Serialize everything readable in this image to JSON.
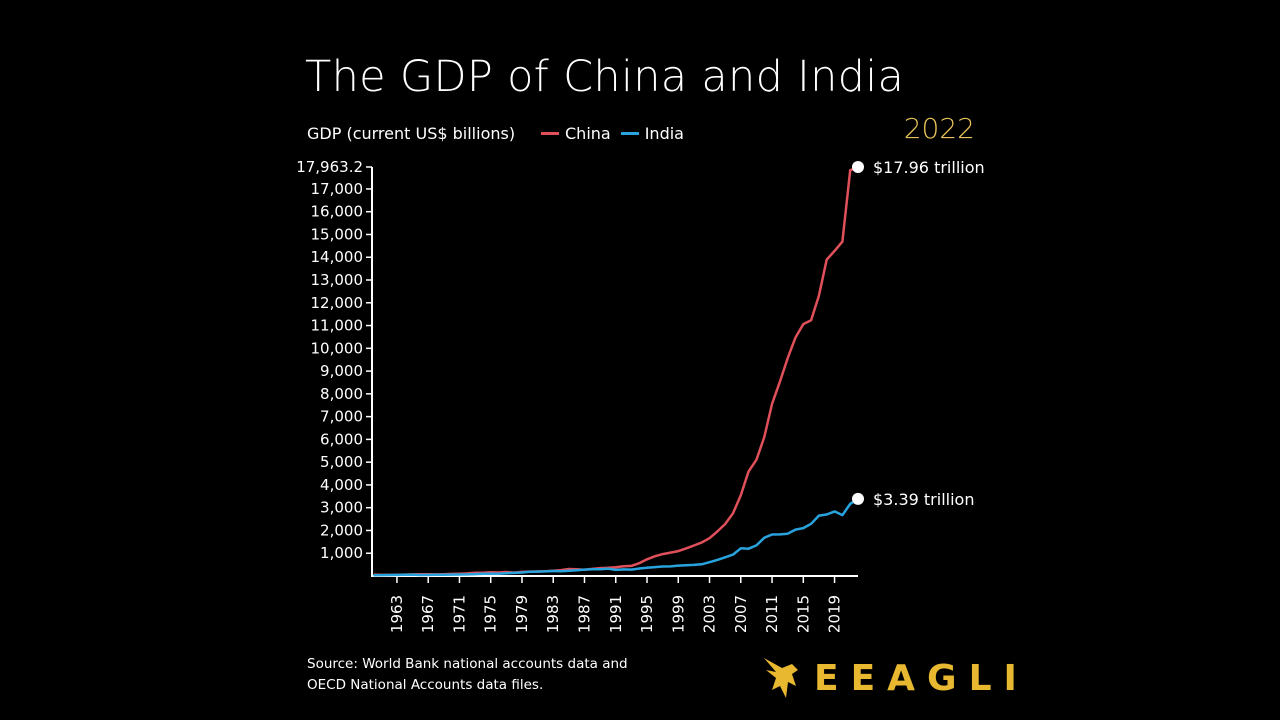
{
  "title": "The GDP of China and India",
  "subtitle": "GDP (current US$ billions)",
  "year_label": "2022",
  "source": [
    "Source: World Bank national accounts data and",
    "OECD National Accounts data files."
  ],
  "logo": "EEAGLI",
  "colors": {
    "china": "#e0505a",
    "india": "#29a3dd",
    "year": "#e8c25a",
    "logo": "#e8b830"
  },
  "chart_data": {
    "type": "line",
    "ylabel": "GDP (current US$ billions)",
    "ylim": [
      0,
      17963.2
    ],
    "xlim": [
      1960,
      2022
    ],
    "y_ticks": [
      "1,000",
      "2,000",
      "3,000",
      "4,000",
      "5,000",
      "6,000",
      "7,000",
      "8,000",
      "9,000",
      "10,000",
      "11,000",
      "12,000",
      "13,000",
      "14,000",
      "15,000",
      "16,000",
      "17,000",
      "17,963.2"
    ],
    "y_tick_values": [
      1000,
      2000,
      3000,
      4000,
      5000,
      6000,
      7000,
      8000,
      9000,
      10000,
      11000,
      12000,
      13000,
      14000,
      15000,
      16000,
      17000,
      17963.2
    ],
    "x_ticks": [
      "1963",
      "1967",
      "1971",
      "1975",
      "1979",
      "1983",
      "1987",
      "1991",
      "1995",
      "1999",
      "2003",
      "2007",
      "2011",
      "2015",
      "2019"
    ],
    "legend": [
      "China",
      "India"
    ],
    "legend_placement": "top",
    "grid": false,
    "x": [
      1960,
      1961,
      1962,
      1963,
      1964,
      1965,
      1966,
      1967,
      1968,
      1969,
      1970,
      1971,
      1972,
      1973,
      1974,
      1975,
      1976,
      1977,
      1978,
      1979,
      1980,
      1981,
      1982,
      1983,
      1984,
      1985,
      1986,
      1987,
      1988,
      1989,
      1990,
      1991,
      1992,
      1993,
      1994,
      1995,
      1996,
      1997,
      1998,
      1999,
      2000,
      2001,
      2002,
      2003,
      2004,
      2005,
      2006,
      2007,
      2008,
      2009,
      2010,
      2011,
      2012,
      2013,
      2014,
      2015,
      2016,
      2017,
      2018,
      2019,
      2020,
      2021,
      2022
    ],
    "series": [
      {
        "name": "China",
        "end_label": "$17.96 trillion",
        "values": [
          59.7,
          50.1,
          47.2,
          50.7,
          59.7,
          70.4,
          76.7,
          72.9,
          70.8,
          79.7,
          92.6,
          99.8,
          113.7,
          138.5,
          144.2,
          163.4,
          153.9,
          174.9,
          149.5,
          178.3,
          191.1,
          195.9,
          205.1,
          230.7,
          259.9,
          309.5,
          300.8,
          272.9,
          312.4,
          347.8,
          360.9,
          383.4,
          427.0,
          444.7,
          564.3,
          734.5,
          863.7,
          961.6,
          1029.0,
          1094.0,
          1211.0,
          1339.0,
          1471.0,
          1660.0,
          1955.0,
          2286.0,
          2752.0,
          3550.0,
          4594.0,
          5102.0,
          6087.0,
          7552.0,
          8532.0,
          9570.0,
          10476.0,
          11062.0,
          11233.0,
          12310.0,
          13895.0,
          14280.0,
          14688.0,
          17820.0,
          17963.2
        ]
      },
      {
        "name": "India",
        "end_label": "$3.39 trillion",
        "values": [
          37.0,
          39.2,
          42.2,
          48.4,
          56.5,
          59.6,
          45.9,
          50.1,
          53.1,
          58.4,
          62.4,
          67.4,
          71.5,
          85.5,
          99.5,
          98.5,
          102.7,
          121.5,
          137.3,
          152.9,
          186.3,
          193.5,
          200.7,
          218.3,
          212.2,
          232.5,
          249.0,
          279.0,
          296.6,
          296.0,
          321.0,
          270.1,
          288.2,
          279.3,
          327.3,
          360.3,
          392.9,
          415.9,
          421.4,
          458.8,
          468.4,
          485.4,
          514.9,
          607.7,
          709.1,
          820.4,
          940.3,
          1216.7,
          1198.9,
          1341.9,
          1675.6,
          1823.1,
          1827.6,
          1856.7,
          2039.1,
          2103.6,
          2294.8,
          2651.5,
          2702.9,
          2835.6,
          2674.9,
          3167.3,
          3389.7
        ]
      }
    ]
  }
}
